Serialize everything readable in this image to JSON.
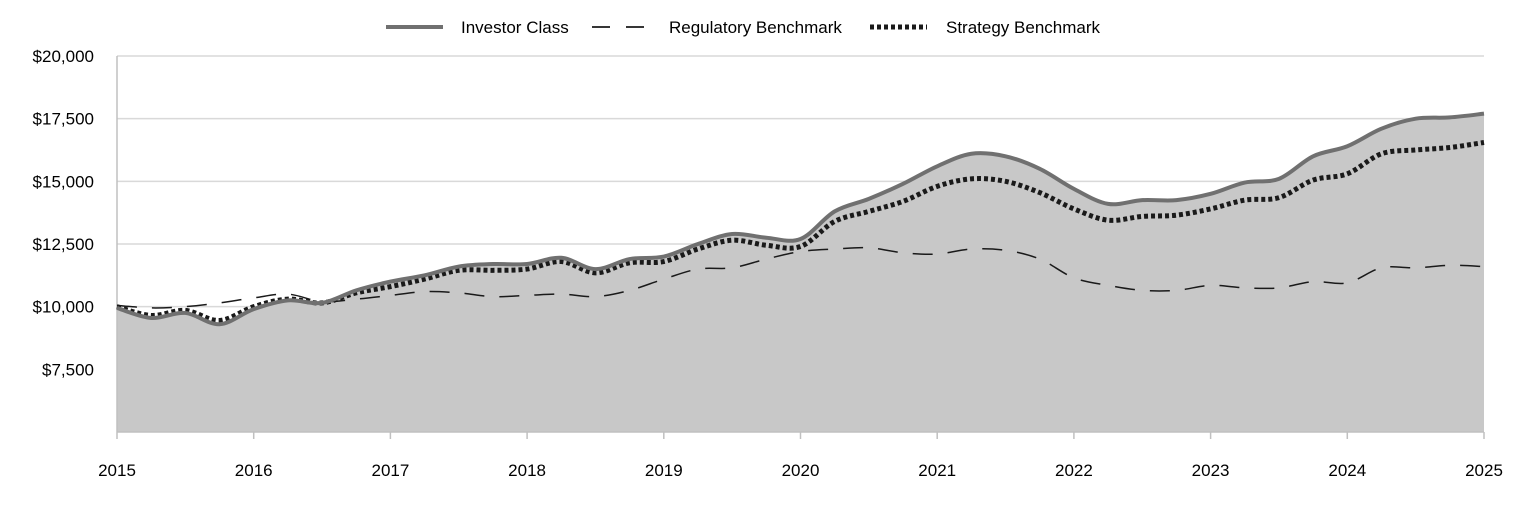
{
  "chart_data": {
    "type": "area",
    "title": "",
    "xlabel": "",
    "ylabel": "",
    "xlim": [
      2015,
      2025
    ],
    "ylim": [
      5000,
      20000
    ],
    "x_ticks": [
      "2015",
      "2016",
      "2017",
      "2018",
      "2019",
      "2020",
      "2021",
      "2022",
      "2023",
      "2024",
      "2025"
    ],
    "y_ticks": [
      {
        "value": 7500,
        "label": "$7,500"
      },
      {
        "value": 10000,
        "label": "$10,000"
      },
      {
        "value": 12500,
        "label": "$12,500"
      },
      {
        "value": 15000,
        "label": "$15,000"
      },
      {
        "value": 17500,
        "label": "$17,500"
      },
      {
        "value": 20000,
        "label": "$20,000"
      }
    ],
    "grid": true,
    "legend_position": "top-center",
    "series": [
      {
        "name": "Investor Class",
        "style": "solid",
        "filled": true,
        "points": [
          [
            2015,
            9950
          ],
          [
            2015.25,
            9550
          ],
          [
            2015.5,
            9750
          ],
          [
            2015.75,
            9300
          ],
          [
            2016,
            9900
          ],
          [
            2016.25,
            10250
          ],
          [
            2016.5,
            10150
          ],
          [
            2016.75,
            10650
          ],
          [
            2017,
            11000
          ],
          [
            2017.25,
            11250
          ],
          [
            2017.5,
            11600
          ],
          [
            2017.75,
            11700
          ],
          [
            2018,
            11700
          ],
          [
            2018.25,
            11950
          ],
          [
            2018.5,
            11500
          ],
          [
            2018.75,
            11900
          ],
          [
            2019,
            12000
          ],
          [
            2019.25,
            12500
          ],
          [
            2019.5,
            12900
          ],
          [
            2019.75,
            12750
          ],
          [
            2020,
            12700
          ],
          [
            2020.25,
            13800
          ],
          [
            2020.5,
            14300
          ],
          [
            2020.75,
            14900
          ],
          [
            2021,
            15600
          ],
          [
            2021.25,
            16100
          ],
          [
            2021.5,
            16000
          ],
          [
            2021.75,
            15500
          ],
          [
            2022,
            14700
          ],
          [
            2022.25,
            14100
          ],
          [
            2022.5,
            14250
          ],
          [
            2022.75,
            14250
          ],
          [
            2023,
            14500
          ],
          [
            2023.25,
            14950
          ],
          [
            2023.5,
            15100
          ],
          [
            2023.75,
            16000
          ],
          [
            2024,
            16400
          ],
          [
            2024.25,
            17100
          ],
          [
            2024.5,
            17500
          ],
          [
            2024.75,
            17550
          ],
          [
            2025,
            17700
          ]
        ]
      },
      {
        "name": "Regulatory Benchmark",
        "style": "dashed",
        "filled": false,
        "points": [
          [
            2015,
            10050
          ],
          [
            2015.25,
            9950
          ],
          [
            2015.5,
            10000
          ],
          [
            2015.75,
            10150
          ],
          [
            2016,
            10350
          ],
          [
            2016.25,
            10500
          ],
          [
            2016.5,
            10200
          ],
          [
            2016.75,
            10300
          ],
          [
            2017,
            10450
          ],
          [
            2017.25,
            10600
          ],
          [
            2017.5,
            10550
          ],
          [
            2017.75,
            10400
          ],
          [
            2018,
            10450
          ],
          [
            2018.25,
            10500
          ],
          [
            2018.5,
            10400
          ],
          [
            2018.75,
            10650
          ],
          [
            2019,
            11100
          ],
          [
            2019.25,
            11500
          ],
          [
            2019.5,
            11550
          ],
          [
            2019.75,
            11900
          ],
          [
            2020,
            12200
          ],
          [
            2020.25,
            12300
          ],
          [
            2020.5,
            12350
          ],
          [
            2020.75,
            12150
          ],
          [
            2021,
            12100
          ],
          [
            2021.25,
            12300
          ],
          [
            2021.5,
            12250
          ],
          [
            2021.75,
            11900
          ],
          [
            2022,
            11150
          ],
          [
            2022.25,
            10850
          ],
          [
            2022.5,
            10650
          ],
          [
            2022.75,
            10650
          ],
          [
            2023,
            10850
          ],
          [
            2023.25,
            10750
          ],
          [
            2023.5,
            10750
          ],
          [
            2023.75,
            11000
          ],
          [
            2024,
            10950
          ],
          [
            2024.25,
            11550
          ],
          [
            2024.5,
            11550
          ],
          [
            2024.75,
            11650
          ],
          [
            2025,
            11600
          ]
        ]
      },
      {
        "name": "Strategy Benchmark",
        "style": "dotted",
        "filled": false,
        "points": [
          [
            2015,
            10000
          ],
          [
            2015.25,
            9650
          ],
          [
            2015.5,
            9850
          ],
          [
            2015.75,
            9450
          ],
          [
            2016,
            10000
          ],
          [
            2016.25,
            10300
          ],
          [
            2016.5,
            10150
          ],
          [
            2016.75,
            10550
          ],
          [
            2017,
            10800
          ],
          [
            2017.25,
            11100
          ],
          [
            2017.5,
            11450
          ],
          [
            2017.75,
            11450
          ],
          [
            2018,
            11500
          ],
          [
            2018.25,
            11800
          ],
          [
            2018.5,
            11350
          ],
          [
            2018.75,
            11750
          ],
          [
            2019,
            11800
          ],
          [
            2019.25,
            12300
          ],
          [
            2019.5,
            12650
          ],
          [
            2019.75,
            12450
          ],
          [
            2020,
            12400
          ],
          [
            2020.25,
            13400
          ],
          [
            2020.5,
            13800
          ],
          [
            2020.75,
            14200
          ],
          [
            2021,
            14800
          ],
          [
            2021.25,
            15100
          ],
          [
            2021.5,
            15000
          ],
          [
            2021.75,
            14550
          ],
          [
            2022,
            13900
          ],
          [
            2022.25,
            13450
          ],
          [
            2022.5,
            13600
          ],
          [
            2022.75,
            13650
          ],
          [
            2023,
            13900
          ],
          [
            2023.25,
            14250
          ],
          [
            2023.5,
            14350
          ],
          [
            2023.75,
            15050
          ],
          [
            2024,
            15300
          ],
          [
            2024.25,
            16100
          ],
          [
            2024.5,
            16250
          ],
          [
            2024.75,
            16350
          ],
          [
            2025,
            16550
          ]
        ]
      }
    ],
    "colors": {
      "investor_line": "#707070",
      "area_fill": "#c8c8c8",
      "benchmark_line": "#1a1a1a",
      "grid": "#d9d9d9",
      "axis": "#c0c0c0"
    }
  }
}
